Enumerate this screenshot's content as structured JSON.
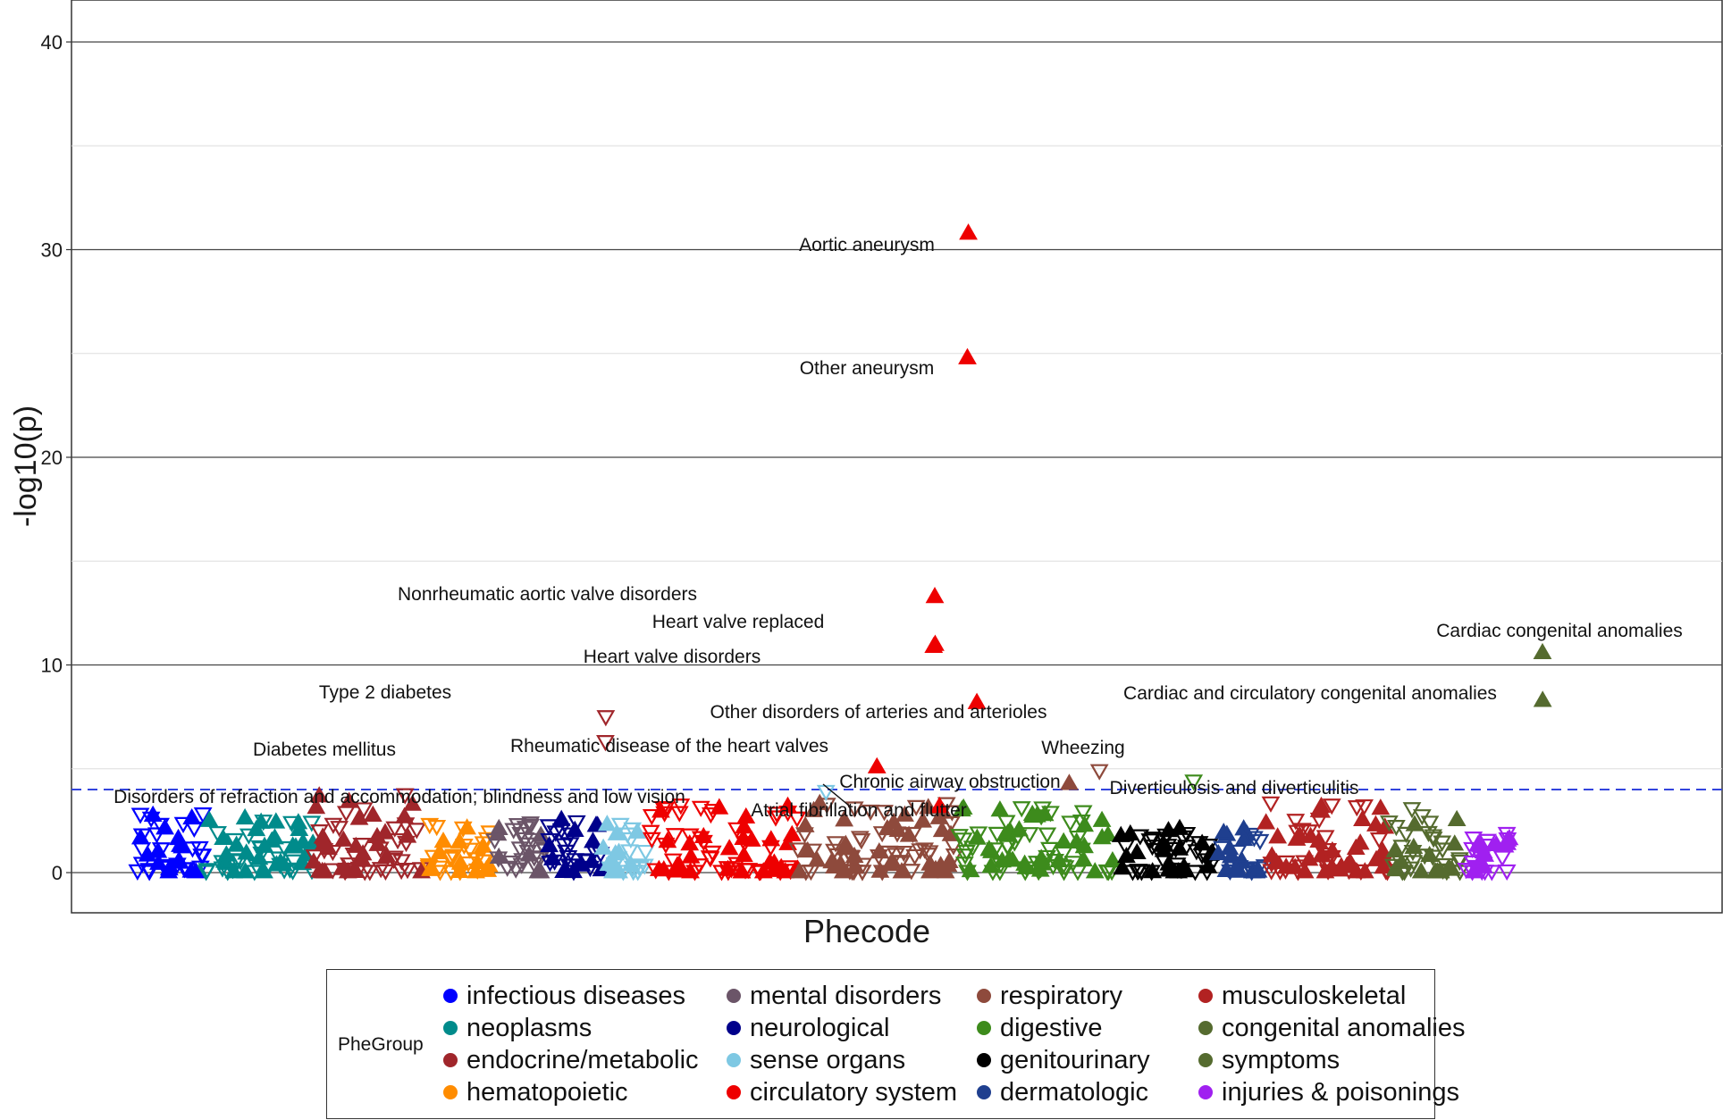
{
  "chart_data": {
    "type": "scatter",
    "title": "",
    "xlabel": "Phecode",
    "ylabel": "-log10(p)",
    "ylim": [
      -2,
      42
    ],
    "yticks": [
      0,
      10,
      20,
      30,
      40
    ],
    "threshold": 4.0,
    "legend_title": "PheGroup",
    "groups": [
      {
        "name": "infectious diseases",
        "color": "#0000FF"
      },
      {
        "name": "neoplasms",
        "color": "#008B8B"
      },
      {
        "name": "endocrine/metabolic",
        "color": "#A0262B"
      },
      {
        "name": "hematopoietic",
        "color": "#FF8C00"
      },
      {
        "name": "mental disorders",
        "color": "#6B5568"
      },
      {
        "name": "neurological",
        "color": "#00008B"
      },
      {
        "name": "sense organs",
        "color": "#7EC8E3"
      },
      {
        "name": "circulatory system",
        "color": "#EE0000"
      },
      {
        "name": "respiratory",
        "color": "#8E4A3C"
      },
      {
        "name": "digestive",
        "color": "#3D8B1C"
      },
      {
        "name": "genitourinary",
        "color": "#000000"
      },
      {
        "name": "dermatologic",
        "color": "#1F3F8F"
      },
      {
        "name": "musculoskeletal",
        "color": "#B22222"
      },
      {
        "name": "congenital anomalies",
        "color": "#556B2F"
      },
      {
        "name": "symptoms",
        "color": "#556B2F"
      },
      {
        "name": "injuries & poisonings",
        "color": "#A020F0"
      }
    ],
    "labeled_points": [
      {
        "label": "Aortic aneurysm",
        "group": "circulatory system",
        "x": 442.5,
        "y": 30.8,
        "dir": "up"
      },
      {
        "label": "Other aneurysm",
        "group": "circulatory system",
        "x": 442.0,
        "y": 24.8,
        "dir": "up"
      },
      {
        "label": "Nonrheumatic aortic valve disorders",
        "group": "circulatory system",
        "x": 424.7,
        "y": 13.3,
        "dir": "up"
      },
      {
        "label": "Heart valve replaced",
        "group": "circulatory system",
        "x": 424.9,
        "y": 11.0,
        "dir": "up"
      },
      {
        "label": "Heart valve disorders",
        "group": "circulatory system",
        "x": 424.1,
        "y": 10.9,
        "dir": "up"
      },
      {
        "label": "Cardiac congenital anomalies",
        "group": "congenital anomalies",
        "x": 747.0,
        "y": 10.6,
        "dir": "up"
      },
      {
        "label": "Other disorders of arteries and arterioles",
        "group": "circulatory system",
        "x": 447.0,
        "y": 8.2,
        "dir": "up"
      },
      {
        "label": "Cardiac and circulatory congenital anomalies",
        "group": "congenital anomalies",
        "x": 747.1,
        "y": 8.3,
        "dir": "up"
      },
      {
        "label": "Type 2 diabetes",
        "group": "endocrine/metabolic",
        "x": 250.2,
        "y": 7.5,
        "dir": "down"
      },
      {
        "label": "Diabetes mellitus",
        "group": "endocrine/metabolic",
        "x": 250.0,
        "y": 6.3,
        "dir": "down"
      },
      {
        "label": "Rheumatic disease of the heart valves",
        "group": "circulatory system",
        "x": 394.0,
        "y": 5.1,
        "dir": "up"
      },
      {
        "label": "Wheezing",
        "group": "respiratory",
        "x": 512.0,
        "y": 4.9,
        "dir": "down"
      },
      {
        "label": "Chronic airway obstruction",
        "group": "respiratory",
        "x": 496.0,
        "y": 4.3,
        "dir": "up"
      },
      {
        "label": "Diverticulosis and diverticulitis",
        "group": "digestive",
        "x": 562.0,
        "y": 4.4,
        "dir": "down"
      },
      {
        "label": "Disorders of refraction and accommodation; blindness and low vision",
        "group": "sense organs",
        "x": 367.0,
        "y": 3.9,
        "dir": "down"
      },
      {
        "label": "Atrial fibrillation and flutter",
        "group": "circulatory system",
        "x": 427.2,
        "y": 3.2,
        "dir": "up"
      }
    ]
  }
}
